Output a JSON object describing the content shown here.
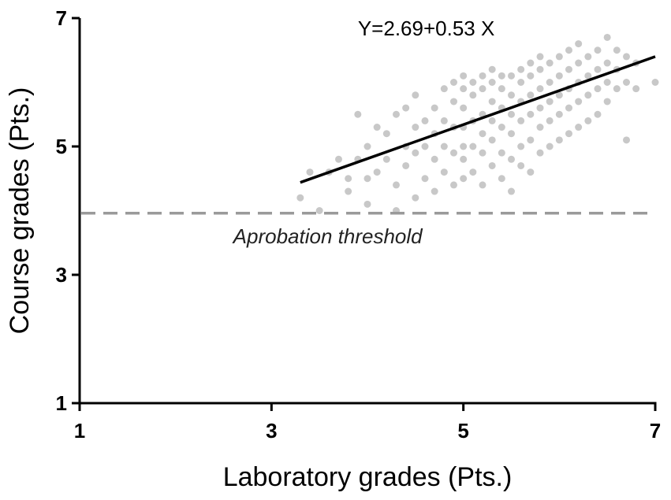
{
  "chart_data": {
    "type": "scatter",
    "xlabel": "Laboratory grades (Pts.)",
    "ylabel": "Course grades (Pts.)",
    "xlim": [
      1,
      7
    ],
    "ylim": [
      1,
      7
    ],
    "x_ticks": [
      "1",
      "3",
      "5",
      "7"
    ],
    "y_ticks": [
      "1",
      "3",
      "5",
      "7"
    ],
    "regression": {
      "equation_label": "Y=2.69+0.53 X",
      "intercept": 2.69,
      "slope": 0.53,
      "x_range": [
        3.3,
        7.0
      ]
    },
    "threshold": {
      "label": "Aprobation threshold",
      "y": 3.96
    },
    "colors": {
      "points": "#c8c8c8",
      "regression_line": "#000000",
      "threshold_line": "#9a9a9a",
      "axis": "#000000"
    },
    "points": [
      [
        3.3,
        4.2
      ],
      [
        3.4,
        4.6
      ],
      [
        3.5,
        4.0
      ],
      [
        3.6,
        4.6
      ],
      [
        3.7,
        4.8
      ],
      [
        3.8,
        4.5
      ],
      [
        3.8,
        4.3
      ],
      [
        3.9,
        4.8
      ],
      [
        3.9,
        5.5
      ],
      [
        4.0,
        4.5
      ],
      [
        4.0,
        4.1
      ],
      [
        4.0,
        5.0
      ],
      [
        4.1,
        4.6
      ],
      [
        4.1,
        5.3
      ],
      [
        4.2,
        4.8
      ],
      [
        4.2,
        5.2
      ],
      [
        4.3,
        4.4
      ],
      [
        4.3,
        5.5
      ],
      [
        4.3,
        4.0
      ],
      [
        4.4,
        4.7
      ],
      [
        4.4,
        5.0
      ],
      [
        4.4,
        5.6
      ],
      [
        4.5,
        4.2
      ],
      [
        4.5,
        4.9
      ],
      [
        4.5,
        5.3
      ],
      [
        4.5,
        5.8
      ],
      [
        4.6,
        4.5
      ],
      [
        4.6,
        5.0
      ],
      [
        4.6,
        5.4
      ],
      [
        4.7,
        4.3
      ],
      [
        4.7,
        4.8
      ],
      [
        4.7,
        5.2
      ],
      [
        4.7,
        5.6
      ],
      [
        4.8,
        4.6
      ],
      [
        4.8,
        5.0
      ],
      [
        4.8,
        5.4
      ],
      [
        4.8,
        5.9
      ],
      [
        4.9,
        4.4
      ],
      [
        4.9,
        4.9
      ],
      [
        4.9,
        5.3
      ],
      [
        4.9,
        5.7
      ],
      [
        4.9,
        6.0
      ],
      [
        5.0,
        4.5
      ],
      [
        5.0,
        4.8
      ],
      [
        5.0,
        5.0
      ],
      [
        5.0,
        5.3
      ],
      [
        5.0,
        5.6
      ],
      [
        5.0,
        5.9
      ],
      [
        5.0,
        6.1
      ],
      [
        5.1,
        4.6
      ],
      [
        5.1,
        5.0
      ],
      [
        5.1,
        5.4
      ],
      [
        5.1,
        5.8
      ],
      [
        5.1,
        6.0
      ],
      [
        5.2,
        4.4
      ],
      [
        5.2,
        4.9
      ],
      [
        5.2,
        5.2
      ],
      [
        5.2,
        5.5
      ],
      [
        5.2,
        5.9
      ],
      [
        5.2,
        6.1
      ],
      [
        5.3,
        4.7
      ],
      [
        5.3,
        5.1
      ],
      [
        5.3,
        5.4
      ],
      [
        5.3,
        5.7
      ],
      [
        5.3,
        6.0
      ],
      [
        5.3,
        6.2
      ],
      [
        5.4,
        4.5
      ],
      [
        5.4,
        4.9
      ],
      [
        5.4,
        5.3
      ],
      [
        5.4,
        5.6
      ],
      [
        5.4,
        5.9
      ],
      [
        5.4,
        6.1
      ],
      [
        5.5,
        4.3
      ],
      [
        5.5,
        4.8
      ],
      [
        5.5,
        5.2
      ],
      [
        5.5,
        5.5
      ],
      [
        5.5,
        5.8
      ],
      [
        5.5,
        6.1
      ],
      [
        5.6,
        4.7
      ],
      [
        5.6,
        5.0
      ],
      [
        5.6,
        5.4
      ],
      [
        5.6,
        5.7
      ],
      [
        5.6,
        6.0
      ],
      [
        5.6,
        6.2
      ],
      [
        5.7,
        4.6
      ],
      [
        5.7,
        5.1
      ],
      [
        5.7,
        5.5
      ],
      [
        5.7,
        5.8
      ],
      [
        5.7,
        6.1
      ],
      [
        5.7,
        6.3
      ],
      [
        5.8,
        4.9
      ],
      [
        5.8,
        5.3
      ],
      [
        5.8,
        5.6
      ],
      [
        5.8,
        5.9
      ],
      [
        5.8,
        6.2
      ],
      [
        5.8,
        6.4
      ],
      [
        5.9,
        5.0
      ],
      [
        5.9,
        5.4
      ],
      [
        5.9,
        5.7
      ],
      [
        5.9,
        6.0
      ],
      [
        5.9,
        6.3
      ],
      [
        6.0,
        5.1
      ],
      [
        6.0,
        5.5
      ],
      [
        6.0,
        5.8
      ],
      [
        6.0,
        6.1
      ],
      [
        6.0,
        6.4
      ],
      [
        6.1,
        5.2
      ],
      [
        6.1,
        5.6
      ],
      [
        6.1,
        5.9
      ],
      [
        6.1,
        6.2
      ],
      [
        6.1,
        6.5
      ],
      [
        6.2,
        5.3
      ],
      [
        6.2,
        5.7
      ],
      [
        6.2,
        6.0
      ],
      [
        6.2,
        6.3
      ],
      [
        6.2,
        6.6
      ],
      [
        6.3,
        5.4
      ],
      [
        6.3,
        5.8
      ],
      [
        6.3,
        6.1
      ],
      [
        6.3,
        6.4
      ],
      [
        6.4,
        5.5
      ],
      [
        6.4,
        5.9
      ],
      [
        6.4,
        6.2
      ],
      [
        6.4,
        6.5
      ],
      [
        6.5,
        5.7
      ],
      [
        6.5,
        6.0
      ],
      [
        6.5,
        6.3
      ],
      [
        6.5,
        6.7
      ],
      [
        6.6,
        5.9
      ],
      [
        6.6,
        6.2
      ],
      [
        6.6,
        6.5
      ],
      [
        6.7,
        5.1
      ],
      [
        6.7,
        6.0
      ],
      [
        6.7,
        6.4
      ],
      [
        6.8,
        5.9
      ],
      [
        6.8,
        6.3
      ],
      [
        7.0,
        6.0
      ]
    ]
  }
}
